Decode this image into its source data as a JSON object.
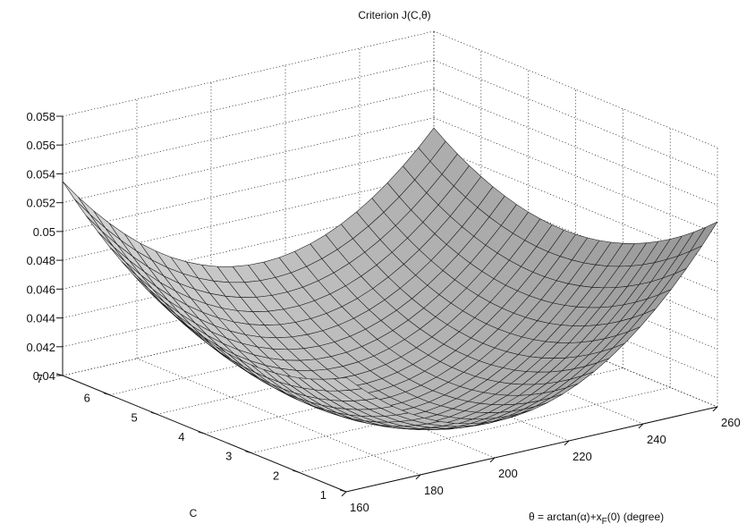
{
  "chart_data": {
    "type": "surface",
    "title": "Criterion J(C,θ)",
    "xlabel": "θ = arctan(α)+x",
    "xlabel_sub": "F",
    "xlabel_tail": "(0) (degree)",
    "ylabel": "C",
    "zlabel": "",
    "xlim": [
      160,
      260
    ],
    "ylim": [
      1,
      7
    ],
    "zlim": [
      0.04,
      0.058
    ],
    "xticks": [
      "160",
      "180",
      "200",
      "220",
      "240",
      "260"
    ],
    "yticks": [
      "1",
      "2",
      "3",
      "4",
      "5",
      "6",
      "7"
    ],
    "zticks": [
      "0.04",
      "0.042",
      "0.044",
      "0.046",
      "0.048",
      "0.05",
      "0.052",
      "0.054",
      "0.056",
      "0.058"
    ],
    "grid": true,
    "surface": {
      "x_range": [
        160,
        260
      ],
      "y_range": [
        1,
        7
      ],
      "x_steps": 24,
      "y_steps": 24,
      "minimum": {
        "x": 207,
        "y": 3.6,
        "z": 0.0395
      },
      "corner_values": [
        {
          "x": 160,
          "y": 1,
          "z": 0.0463
        },
        {
          "x": 160,
          "y": 7,
          "z": 0.053
        },
        {
          "x": 260,
          "y": 1,
          "z": 0.0534
        },
        {
          "x": 260,
          "y": 7,
          "z": 0.0524
        }
      ]
    },
    "colormap": "gray"
  }
}
